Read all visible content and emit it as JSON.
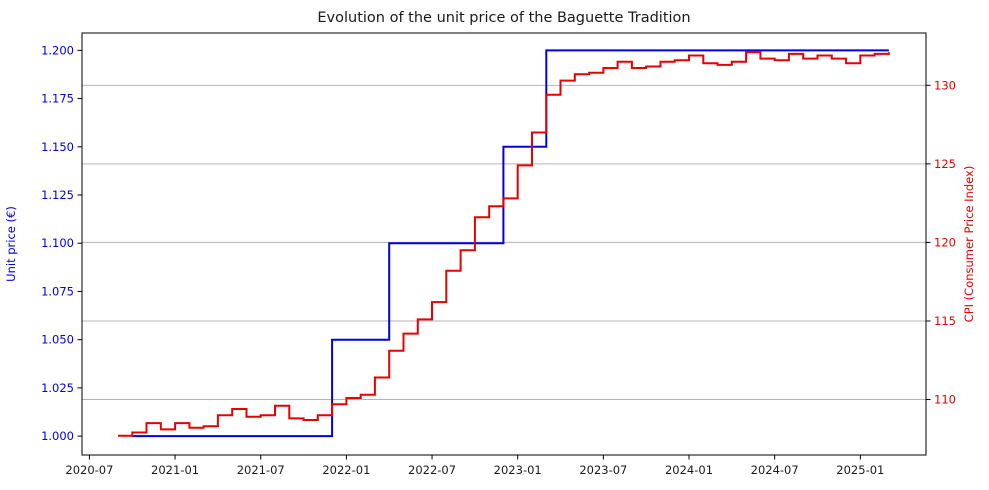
{
  "chart_data": {
    "type": "line",
    "title": "Evolution of the unit price of the Baguette Tradition",
    "frequency": "monthly",
    "x_axis_start": "2020-07",
    "x_tick_interval_months": 6,
    "x_tick_labels": [
      "2020-07",
      "2021-01",
      "2021-07",
      "2022-01",
      "2022-07",
      "2023-01",
      "2023-07",
      "2024-01",
      "2024-07",
      "2025-01"
    ],
    "x_range_months": [
      -0.52,
      58.6
    ],
    "grid": {
      "show": true,
      "orientation": "horizontal",
      "aligned_to": "right_axis",
      "color": "#b3b3b3"
    },
    "legend": {
      "show": false
    },
    "left_axis": {
      "label": "Unit price (€)",
      "color": "#0000e0",
      "tick_labels": [
        "1.000",
        "1.025",
        "1.050",
        "1.075",
        "1.100",
        "1.125",
        "1.150",
        "1.175",
        "1.200"
      ],
      "range": [
        0.9902,
        1.209
      ]
    },
    "right_axis": {
      "label": "CPI (Consumer Price Index)",
      "color": "#e60000",
      "tick_labels": [
        "110",
        "115",
        "120",
        "125",
        "130"
      ],
      "range": [
        106.47,
        133.33
      ]
    },
    "series": [
      {
        "id": "unit_price",
        "name": "Unit price (€)",
        "axis": "left",
        "color": "#0000e0",
        "line_style": "steps-post",
        "line_width": 2,
        "start_month": "2020-10",
        "end_month": "2025-03",
        "values": [
          1.0,
          1.0,
          1.0,
          1.0,
          1.0,
          1.0,
          1.0,
          1.0,
          1.0,
          1.0,
          1.0,
          1.0,
          1.0,
          1.0,
          1.05,
          1.05,
          1.05,
          1.05,
          1.1,
          1.1,
          1.1,
          1.1,
          1.1,
          1.1,
          1.1,
          1.1,
          1.15,
          1.15,
          1.15,
          1.2,
          1.2,
          1.2,
          1.2,
          1.2,
          1.2,
          1.2,
          1.2,
          1.2,
          1.2,
          1.2,
          1.2,
          1.2,
          1.2,
          1.2,
          1.2,
          1.2,
          1.2,
          1.2,
          1.2,
          1.2,
          1.2,
          1.2,
          1.2,
          1.2
        ]
      },
      {
        "id": "cpi",
        "name": "CPI (Consumer Price Index)",
        "axis": "right",
        "color": "#e60000",
        "line_style": "steps-post",
        "line_width": 2,
        "start_month": "2020-09",
        "end_month": "2025-03",
        "values": [
          107.7,
          107.9,
          108.5,
          108.1,
          108.5,
          108.2,
          108.3,
          109.0,
          109.4,
          108.9,
          109.0,
          109.6,
          108.8,
          108.7,
          109.0,
          109.7,
          110.1,
          110.3,
          111.4,
          113.1,
          114.2,
          115.1,
          116.2,
          118.2,
          119.5,
          121.6,
          122.3,
          122.8,
          124.9,
          127.0,
          129.4,
          130.3,
          130.7,
          130.8,
          131.1,
          131.5,
          131.1,
          131.2,
          131.5,
          131.6,
          131.9,
          131.4,
          131.3,
          131.5,
          132.1,
          131.7,
          131.6,
          132.0,
          131.7,
          131.9,
          131.7,
          131.4,
          131.9,
          132.0,
          132.1
        ]
      }
    ]
  }
}
